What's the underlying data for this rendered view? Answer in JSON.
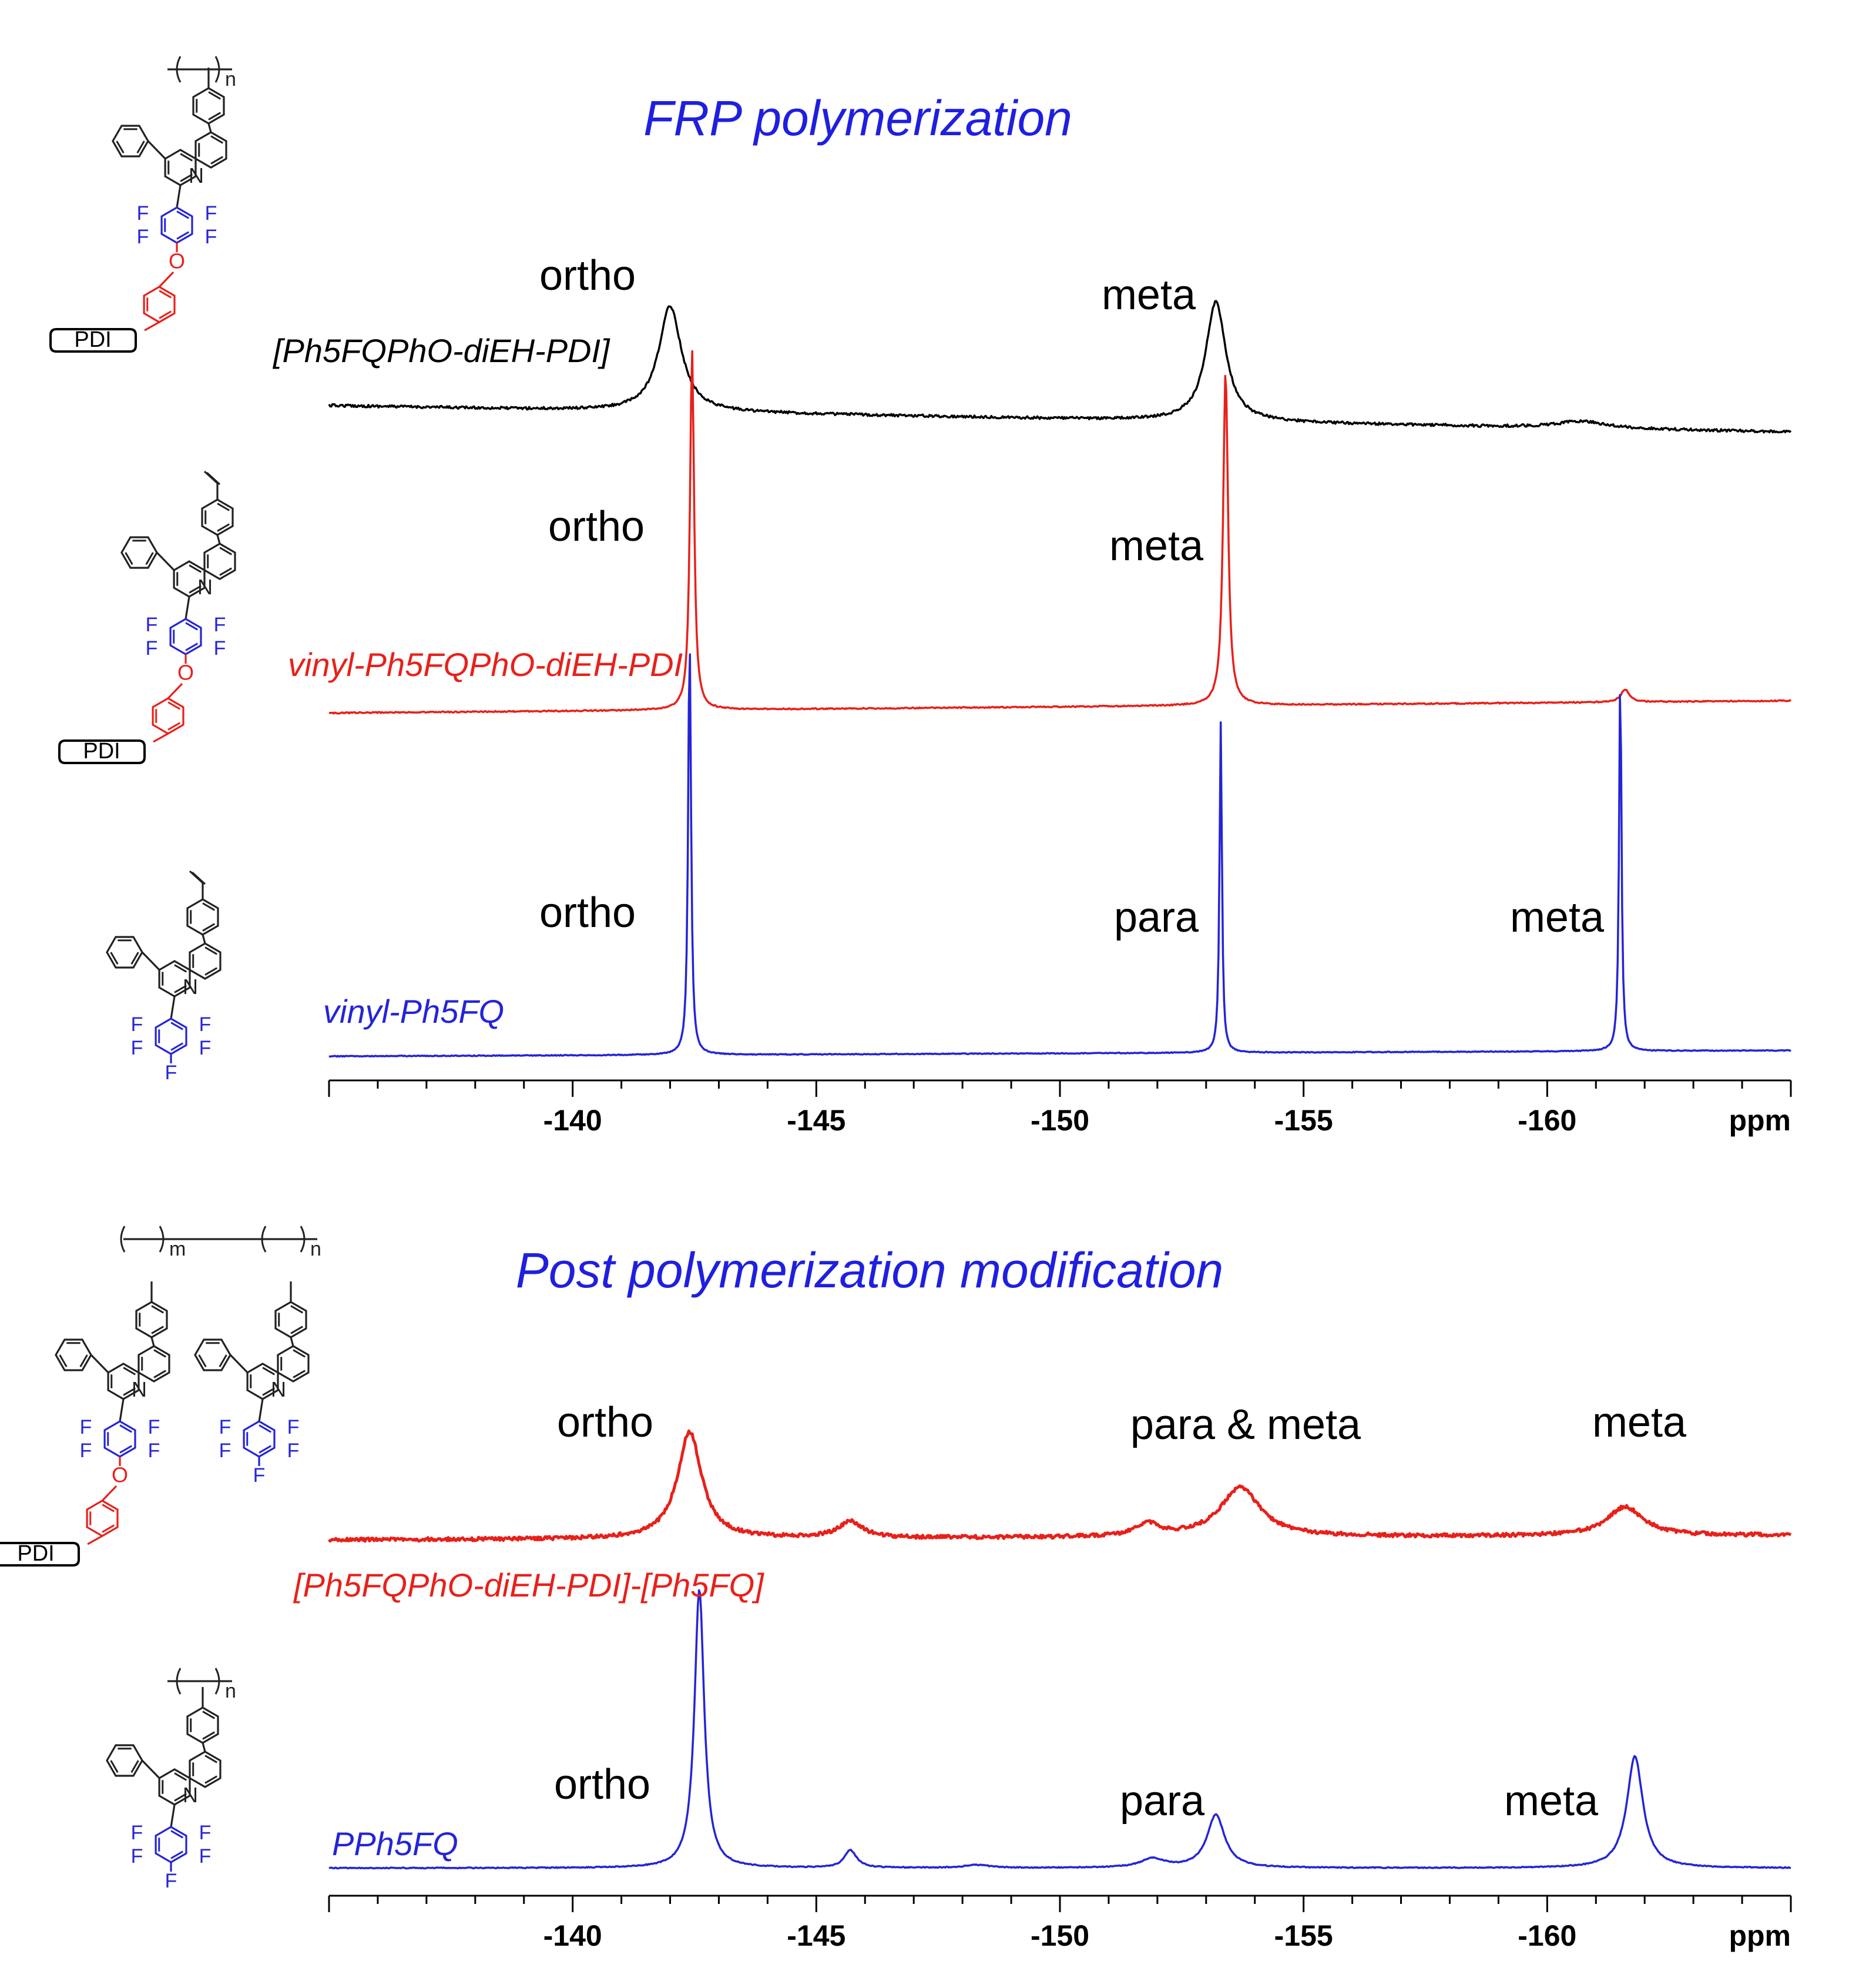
{
  "chart_data": [
    {
      "type": "line",
      "title": "FRP polymerization",
      "xlabel": "ppm",
      "x_unit": "ppm",
      "xlim": [
        -135,
        -165
      ],
      "x_reversed": true,
      "xticks": [
        -140,
        -145,
        -150,
        -155,
        -160
      ],
      "tick_labels": [
        "-140",
        "-145",
        "-150",
        "-155",
        "-160"
      ],
      "grid": false,
      "series": [
        {
          "name": "[Ph5FQPhO-diEH-PDI]",
          "color": "#000000",
          "peaks": [
            {
              "x": -142.0,
              "height": 0.3,
              "width": 0.28,
              "label": "ortho"
            },
            {
              "x": -153.2,
              "height": 0.34,
              "width": 0.25,
              "label": "meta"
            },
            {
              "x": -160.7,
              "height": 0.02,
              "width": 0.6
            }
          ]
        },
        {
          "name": "vinyl-Ph5FQPhO-diEH-PDI",
          "color": "#e8201a",
          "peaks": [
            {
              "x": -142.45,
              "height": 0.84,
              "width": 0.05,
              "label": "ortho"
            },
            {
              "x": -153.4,
              "height": 0.78,
              "width": 0.06,
              "label": "meta"
            },
            {
              "x": -161.6,
              "height": 0.03,
              "width": 0.1
            }
          ]
        },
        {
          "name": "vinyl-Ph5FQ",
          "color": "#2424d8",
          "peaks": [
            {
              "x": -142.4,
              "height": 0.94,
              "width": 0.035,
              "label": "ortho"
            },
            {
              "x": -153.3,
              "height": 0.74,
              "width": 0.03,
              "label": "para"
            },
            {
              "x": -161.5,
              "height": 0.85,
              "width": 0.03,
              "label": "meta"
            }
          ]
        }
      ]
    },
    {
      "type": "line",
      "title": "Post polymerization modification",
      "xlabel": "ppm",
      "x_unit": "ppm",
      "xlim": [
        -135,
        -165
      ],
      "x_reversed": true,
      "xticks": [
        -140,
        -145,
        -150,
        -155,
        -160
      ],
      "tick_labels": [
        "-140",
        "-145",
        "-150",
        "-155",
        "-160"
      ],
      "grid": false,
      "series": [
        {
          "name": "[Ph5FQPhO-diEH-PDI]-[Ph5FQ]",
          "color": "#e8201a",
          "peaks": [
            {
              "x": -142.4,
              "height": 0.26,
              "width": 0.3,
              "label": "ortho"
            },
            {
              "x": -145.7,
              "height": 0.04,
              "width": 0.3
            },
            {
              "x": -151.8,
              "height": 0.03,
              "width": 0.3
            },
            {
              "x": -153.7,
              "height": 0.12,
              "width": 0.5,
              "label": "para & meta"
            },
            {
              "x": -161.6,
              "height": 0.07,
              "width": 0.45,
              "label": "meta"
            }
          ]
        },
        {
          "name": "PPh5FQ",
          "color": "#2424d8",
          "peaks": [
            {
              "x": -142.6,
              "height": 0.95,
              "width": 0.12,
              "label": "ortho"
            },
            {
              "x": -145.7,
              "height": 0.06,
              "width": 0.15
            },
            {
              "x": -148.3,
              "height": 0.01,
              "width": 0.3
            },
            {
              "x": -151.9,
              "height": 0.03,
              "width": 0.3
            },
            {
              "x": -153.2,
              "height": 0.18,
              "width": 0.22,
              "label": "para"
            },
            {
              "x": -161.8,
              "height": 0.38,
              "width": 0.2,
              "label": "meta"
            }
          ]
        }
      ]
    }
  ],
  "structures": [
    {
      "repeat_subscripts": [
        "n"
      ],
      "ring_labels": [
        "N",
        "F",
        "F",
        "F",
        "F",
        "O",
        "PDI"
      ]
    },
    {
      "repeat_subscripts": [],
      "ring_labels": [
        "N",
        "F",
        "F",
        "F",
        "F",
        "O",
        "PDI"
      ]
    },
    {
      "repeat_subscripts": [],
      "ring_labels": [
        "N",
        "F",
        "F",
        "F",
        "F",
        "F"
      ]
    },
    {
      "repeat_subscripts": [
        "m",
        "n"
      ],
      "ring_labels": [
        "N",
        "F",
        "F",
        "F",
        "F",
        "O",
        "PDI",
        "N",
        "F",
        "F",
        "F",
        "F",
        "F"
      ]
    },
    {
      "repeat_subscripts": [
        "n"
      ],
      "ring_labels": [
        "N",
        "F",
        "F",
        "F",
        "F",
        "F"
      ]
    }
  ],
  "colors": {
    "black": "#000000",
    "red": "#e8201a",
    "blue": "#2424d8",
    "title_blue": "#1f1fe0"
  }
}
